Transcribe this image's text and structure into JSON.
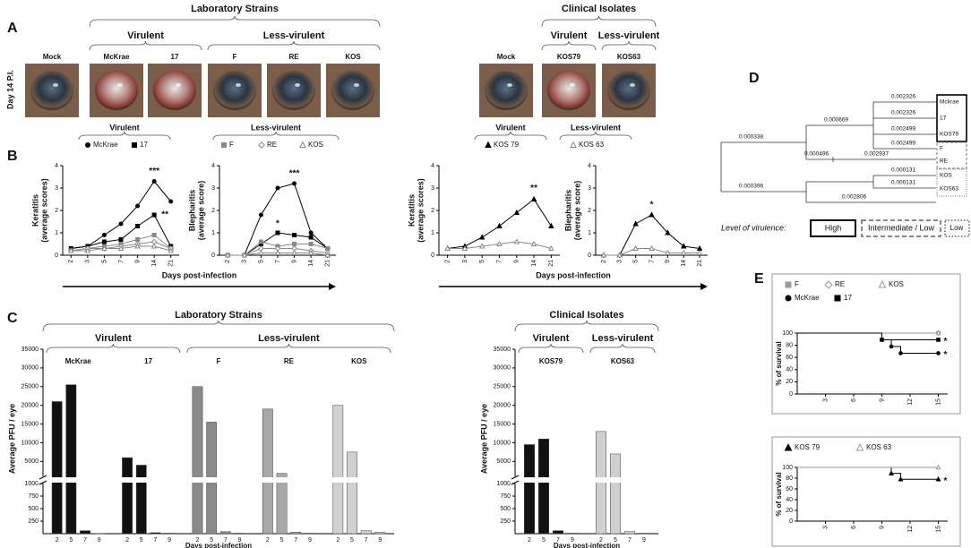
{
  "panel_labels": [
    "A",
    "B",
    "C",
    "D",
    "E"
  ],
  "panel_a": {
    "row_label": "Day 14 P.I.",
    "groups": [
      {
        "title": "Laboratory Strains",
        "subgroups": [
          "Virulent",
          "Less-virulent"
        ],
        "photos": [
          "Mock",
          "McKrae",
          "17",
          "F",
          "RE",
          "KOS"
        ]
      },
      {
        "title": "Clinical Isolates",
        "subgroups": [
          "Virulent",
          "Less-virulent"
        ],
        "photos": [
          "Mock",
          "KOS79",
          "KOS63"
        ]
      }
    ]
  },
  "chart_data": [
    {
      "type": "line",
      "categories": [
        "2",
        "3",
        "5",
        "7",
        "9",
        "14",
        "21"
      ],
      "y_label": [
        "Keratitis",
        "(average scores)"
      ],
      "ylim": [
        0,
        4
      ],
      "yticks": [
        0,
        1,
        2,
        3,
        4
      ],
      "legend_groups": [
        "Virulent",
        "Less-virulent"
      ],
      "x_label": "Days post-infection",
      "annotations": [
        "***",
        "**"
      ],
      "series": [
        {
          "name": "McKrae",
          "color": "#000000",
          "marker": "circle",
          "filled": true,
          "values": [
            0.3,
            0.4,
            0.9,
            1.4,
            2.2,
            3.3,
            2.4
          ]
        },
        {
          "name": "17",
          "color": "#000000",
          "marker": "square",
          "filled": true,
          "values": [
            0.3,
            0.4,
            0.6,
            0.7,
            1.3,
            1.8,
            0.4
          ]
        },
        {
          "name": "F",
          "color": "#888888",
          "marker": "square",
          "filled": true,
          "values": [
            0.2,
            0.3,
            0.4,
            0.5,
            0.7,
            0.9,
            0.3
          ]
        },
        {
          "name": "RE",
          "color": "#888888",
          "marker": "diamond",
          "filled": false,
          "values": [
            0.2,
            0.3,
            0.3,
            0.4,
            0.5,
            0.6,
            0.3
          ]
        },
        {
          "name": "KOS",
          "color": "#888888",
          "marker": "triangle",
          "filled": false,
          "values": [
            0.2,
            0.2,
            0.3,
            0.3,
            0.4,
            0.4,
            0.2
          ]
        }
      ]
    },
    {
      "type": "line",
      "categories": [
        "2",
        "3",
        "5",
        "7",
        "9",
        "14",
        "21"
      ],
      "y_label": [
        "Blepharitis",
        "(average score)"
      ],
      "ylim": [
        0,
        4
      ],
      "yticks": [
        0,
        1,
        2,
        3,
        4
      ],
      "annotations": [
        "***",
        "*"
      ],
      "series": [
        {
          "color": "#000000",
          "marker": "circle",
          "filled": true,
          "values": [
            0,
            0,
            1.8,
            3.0,
            3.2,
            1.0,
            0.3
          ]
        },
        {
          "color": "#000000",
          "marker": "square",
          "filled": true,
          "values": [
            0,
            0,
            0.5,
            1.0,
            0.9,
            0.8,
            0.3
          ]
        },
        {
          "color": "#888888",
          "marker": "square",
          "filled": true,
          "values": [
            0,
            0,
            0.6,
            0.4,
            0.5,
            0.5,
            0.3
          ]
        },
        {
          "color": "#888888",
          "marker": "diamond",
          "filled": false,
          "values": [
            0,
            0,
            0.3,
            0.3,
            0.3,
            0.2,
            0.1
          ]
        },
        {
          "color": "#888888",
          "marker": "triangle",
          "filled": false,
          "values": [
            0,
            0,
            0.1,
            0.1,
            0.1,
            0.1,
            0
          ]
        }
      ]
    },
    {
      "type": "line",
      "categories": [
        "2",
        "3",
        "5",
        "7",
        "9",
        "14",
        "21"
      ],
      "y_label": [
        "Keratitis",
        "(average scores)"
      ],
      "ylim": [
        0,
        4
      ],
      "yticks": [
        0,
        1,
        2,
        3,
        4
      ],
      "legend_groups": [
        "Virulent",
        "Less-virulent"
      ],
      "x_label": "Days post-infection",
      "annotations": [
        "**"
      ],
      "series": [
        {
          "name": "KOS 79",
          "color": "#000000",
          "marker": "triangle",
          "filled": true,
          "values": [
            0.3,
            0.4,
            0.8,
            1.3,
            1.9,
            2.5,
            1.3
          ]
        },
        {
          "name": "KOS 63",
          "color": "#888888",
          "marker": "triangle",
          "filled": false,
          "values": [
            0.3,
            0.3,
            0.4,
            0.5,
            0.6,
            0.5,
            0.3
          ]
        }
      ]
    },
    {
      "type": "line",
      "categories": [
        "2",
        "3",
        "5",
        "7",
        "9",
        "14",
        "21"
      ],
      "y_label": [
        "Blepharitis",
        "(average score)"
      ],
      "ylim": [
        0,
        4
      ],
      "yticks": [
        0,
        1,
        2,
        3,
        4
      ],
      "annotations": [
        "*"
      ],
      "series": [
        {
          "color": "#000000",
          "marker": "triangle",
          "filled": true,
          "values": [
            0,
            0,
            1.4,
            1.8,
            1.0,
            0.4,
            0.3
          ]
        },
        {
          "color": "#888888",
          "marker": "triangle",
          "filled": false,
          "values": [
            0,
            0,
            0.3,
            0.3,
            0.1,
            0.1,
            0.1
          ]
        }
      ]
    },
    {
      "type": "bar",
      "title": "Laboratory Strains",
      "group_labels": [
        "Virulent",
        "Less-virulent"
      ],
      "y_label": "Average PFU / eye",
      "x_label": "Days post-infection",
      "y_segments": [
        {
          "ylim": [
            0,
            1000
          ],
          "yticks": [
            250,
            500,
            750,
            1000
          ]
        },
        {
          "ylim": [
            1000,
            35000
          ],
          "yticks": [
            5000,
            10000,
            15000,
            20000,
            25000,
            30000,
            35000
          ]
        }
      ],
      "groups": [
        {
          "name": "McKrae",
          "color": "#111111",
          "categories": [
            "2",
            "5",
            "7",
            "9"
          ],
          "values": [
            21000,
            25500,
            60,
            5
          ]
        },
        {
          "name": "17",
          "color": "#111111",
          "categories": [
            "2",
            "5",
            "7",
            "9"
          ],
          "values": [
            6000,
            4000,
            20,
            10
          ]
        },
        {
          "name": "F",
          "color": "#8a8a8a",
          "categories": [
            "2",
            "5",
            "7",
            "9"
          ],
          "values": [
            25000,
            15500,
            40,
            10
          ]
        },
        {
          "name": "RE",
          "color": "#a8a8a8",
          "categories": [
            "2",
            "5",
            "7",
            "9"
          ],
          "values": [
            19000,
            1800,
            30,
            10
          ]
        },
        {
          "name": "KOS",
          "color": "#d0d0d0",
          "categories": [
            "2",
            "5",
            "7",
            "9"
          ],
          "values": [
            20000,
            7500,
            60,
            30
          ]
        }
      ]
    },
    {
      "type": "bar",
      "title": "Clinical Isolates",
      "group_labels": [
        "Virulent",
        "Less-virulent"
      ],
      "y_label": "Average PFU / eye",
      "x_label": "Days post-infection",
      "y_segments": [
        {
          "ylim": [
            0,
            1000
          ],
          "yticks": [
            250,
            500,
            750,
            1000
          ]
        },
        {
          "ylim": [
            1000,
            35000
          ],
          "yticks": [
            5000,
            10000,
            15000,
            20000,
            25000,
            30000,
            35000
          ]
        }
      ],
      "groups": [
        {
          "name": "KOS79",
          "color": "#111111",
          "categories": [
            "2",
            "5",
            "7",
            "9"
          ],
          "values": [
            9500,
            11000,
            60,
            10
          ]
        },
        {
          "name": "KOS63",
          "color": "#d0d0d0",
          "categories": [
            "2",
            "5",
            "7",
            "9"
          ],
          "values": [
            13000,
            7000,
            40,
            10
          ]
        }
      ]
    },
    {
      "type": "line",
      "step": true,
      "y_label": "% of survival",
      "xlim": [
        0,
        16
      ],
      "xticks": [
        3,
        6,
        9,
        12,
        15
      ],
      "ylim": [
        0,
        100
      ],
      "yticks": [
        0,
        20,
        40,
        60,
        80,
        100
      ],
      "annotations": [
        "*",
        "*"
      ],
      "series": [
        {
          "name": "F",
          "color": "#999999",
          "marker": "square",
          "filled": true,
          "x": [
            0,
            15
          ],
          "values": [
            100,
            100
          ]
        },
        {
          "name": "RE",
          "color": "#999999",
          "marker": "diamond",
          "filled": false,
          "x": [
            0,
            15
          ],
          "values": [
            100,
            100
          ]
        },
        {
          "name": "KOS",
          "color": "#999999",
          "marker": "triangle",
          "filled": false,
          "x": [
            0,
            15
          ],
          "values": [
            100,
            100
          ]
        },
        {
          "name": "McKrae",
          "color": "#000000",
          "marker": "circle",
          "filled": true,
          "x": [
            0,
            9,
            10,
            11,
            15
          ],
          "values": [
            100,
            89,
            78,
            67,
            67
          ]
        },
        {
          "name": "17",
          "color": "#000000",
          "marker": "square",
          "filled": true,
          "x": [
            0,
            9,
            15
          ],
          "values": [
            100,
            89,
            89
          ]
        }
      ]
    },
    {
      "type": "line",
      "step": true,
      "y_label": "% of survival",
      "xlim": [
        0,
        16
      ],
      "xticks": [
        3,
        6,
        9,
        12,
        15
      ],
      "ylim": [
        0,
        100
      ],
      "yticks": [
        0,
        20,
        40,
        60,
        80,
        100
      ],
      "annotations": [
        "*"
      ],
      "series": [
        {
          "name": "KOS 79",
          "color": "#000000",
          "marker": "triangle",
          "filled": true,
          "x": [
            0,
            10,
            11,
            15
          ],
          "values": [
            100,
            89,
            78,
            78
          ]
        },
        {
          "name": "KOS 63",
          "color": "#999999",
          "marker": "triangle",
          "filled": false,
          "x": [
            0,
            15
          ],
          "values": [
            100,
            100
          ]
        }
      ]
    }
  ],
  "tree": {
    "leaves": [
      "Mckrae",
      "17",
      "KOS79",
      "F",
      "RE",
      "KOS",
      "KOS63"
    ],
    "branch_lengths": [
      0.000338,
      0.000669,
      0.002326,
      0.002326,
      0.002499,
      0.002499,
      0.000496,
      0.002937,
      0.000131,
      0.000131,
      0.000396,
      0.002806
    ],
    "legend_title": "Level of virulence:",
    "legend": [
      "High",
      "Intermediate / Low",
      "Low"
    ]
  }
}
